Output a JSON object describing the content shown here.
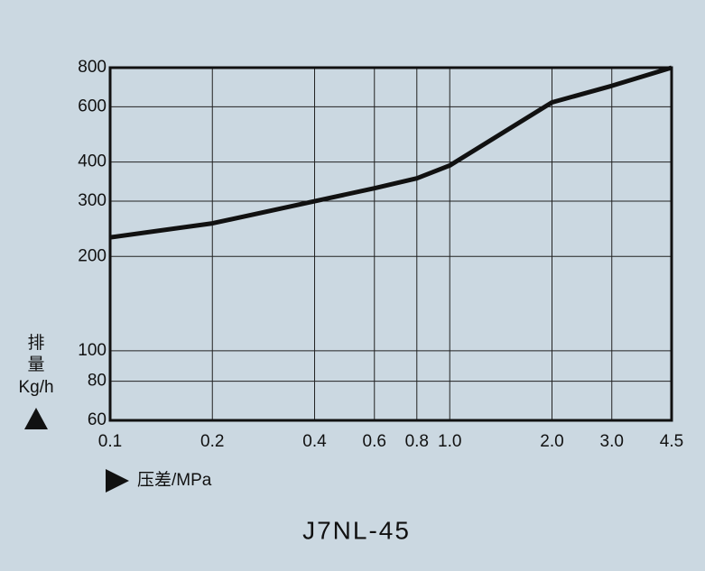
{
  "chart_data": {
    "type": "line",
    "title": "J7NL-45",
    "x_label": "压差/MPa",
    "y_label": [
      "排",
      "量",
      "Kg/h"
    ],
    "x": [
      0.1,
      0.2,
      0.4,
      0.6,
      0.8,
      1.0,
      2.0,
      3.0,
      4.5
    ],
    "series": [
      {
        "name": "J7NL-45",
        "color": "#111111",
        "values": [
          230,
          255,
          300,
          330,
          355,
          390,
          620,
          700,
          800
        ]
      }
    ],
    "log_x": true,
    "log_y": true,
    "grid": true,
    "xlim": [
      0.1,
      4.5
    ],
    "xticks": [
      0.1,
      0.2,
      0.4,
      0.6,
      0.8,
      {
        "value": 1,
        "label": "1.0"
      },
      {
        "value": 2,
        "label": "2.0"
      },
      {
        "value": 3,
        "label": "3.0"
      },
      4.5
    ],
    "ylim": [
      60,
      800
    ],
    "yticks": [
      60,
      80,
      100,
      200,
      300,
      400,
      600,
      800
    ]
  }
}
